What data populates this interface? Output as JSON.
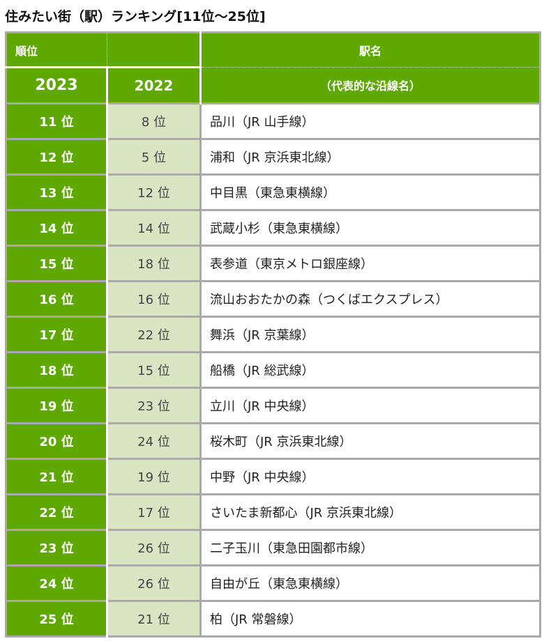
{
  "title": "住みたい街（駅）ランキング[11位～25位]",
  "header": {
    "rank_label": "順位",
    "year_2023": "2023",
    "year_2022": "2022",
    "station_label": "駅名",
    "line_label": "（代表的な沿線名）"
  },
  "colors": {
    "header_green": "#5fa800",
    "prev_rank_bg": "#d8e4c2",
    "border": "#a9a9a9"
  },
  "rows": [
    {
      "rank_2023": "11 位",
      "rank_2022": "8 位",
      "station": "品川（JR 山手線）"
    },
    {
      "rank_2023": "12 位",
      "rank_2022": "5 位",
      "station": "浦和（JR 京浜東北線）"
    },
    {
      "rank_2023": "13 位",
      "rank_2022": "12 位",
      "station": "中目黒（東急東横線）"
    },
    {
      "rank_2023": "14 位",
      "rank_2022": "14 位",
      "station": "武蔵小杉（東急東横線）"
    },
    {
      "rank_2023": "15 位",
      "rank_2022": "18 位",
      "station": "表参道（東京メトロ銀座線）"
    },
    {
      "rank_2023": "16 位",
      "rank_2022": "16 位",
      "station": "流山おおたかの森（つくばエクスプレス）"
    },
    {
      "rank_2023": "17 位",
      "rank_2022": "22 位",
      "station": "舞浜（JR 京葉線）"
    },
    {
      "rank_2023": "18 位",
      "rank_2022": "15 位",
      "station": "船橋（JR 総武線）"
    },
    {
      "rank_2023": "19 位",
      "rank_2022": "23 位",
      "station": "立川（JR 中央線）"
    },
    {
      "rank_2023": "20 位",
      "rank_2022": "24 位",
      "station": "桜木町（JR 京浜東北線）"
    },
    {
      "rank_2023": "21 位",
      "rank_2022": "19 位",
      "station": "中野（JR 中央線）"
    },
    {
      "rank_2023": "22 位",
      "rank_2022": "17 位",
      "station": "さいたま新都心（JR 京浜東北線）"
    },
    {
      "rank_2023": "23 位",
      "rank_2022": "26 位",
      "station": "二子玉川（東急田園都市線）"
    },
    {
      "rank_2023": "24 位",
      "rank_2022": "26 位",
      "station": "自由が丘（東急東横線）"
    },
    {
      "rank_2023": "25 位",
      "rank_2022": "21 位",
      "station": "柏（JR 常磐線）"
    }
  ]
}
